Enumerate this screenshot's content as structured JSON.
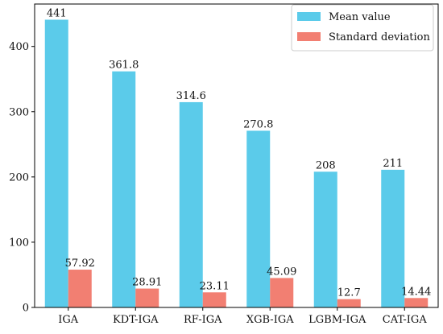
{
  "chart_data": {
    "type": "bar",
    "categories": [
      "IGA",
      "KDT-IGA",
      "RF-IGA",
      "XGB-IGA",
      "LGBM-IGA",
      "CAT-IGA"
    ],
    "series": [
      {
        "name": "Mean value",
        "values": [
          441,
          361.8,
          314.6,
          270.8,
          208,
          211
        ],
        "labels": [
          "441",
          "361.8",
          "314.6",
          "270.8",
          "208",
          "211"
        ],
        "color": "#5bcbea"
      },
      {
        "name": "Standard deviation",
        "values": [
          57.92,
          28.91,
          23.11,
          45.09,
          12.7,
          14.44
        ],
        "labels": [
          "57.92",
          "28.91",
          "23.11",
          "45.09",
          "12.7",
          "14.44"
        ],
        "color": "#f27f72"
      }
    ],
    "ylim": [
      0,
      465
    ],
    "yticks": [
      0,
      100,
      200,
      300,
      400
    ],
    "ytick_labels": [
      "0",
      "100",
      "200",
      "300",
      "400"
    ],
    "grid": false,
    "legend_position": "top-right"
  }
}
